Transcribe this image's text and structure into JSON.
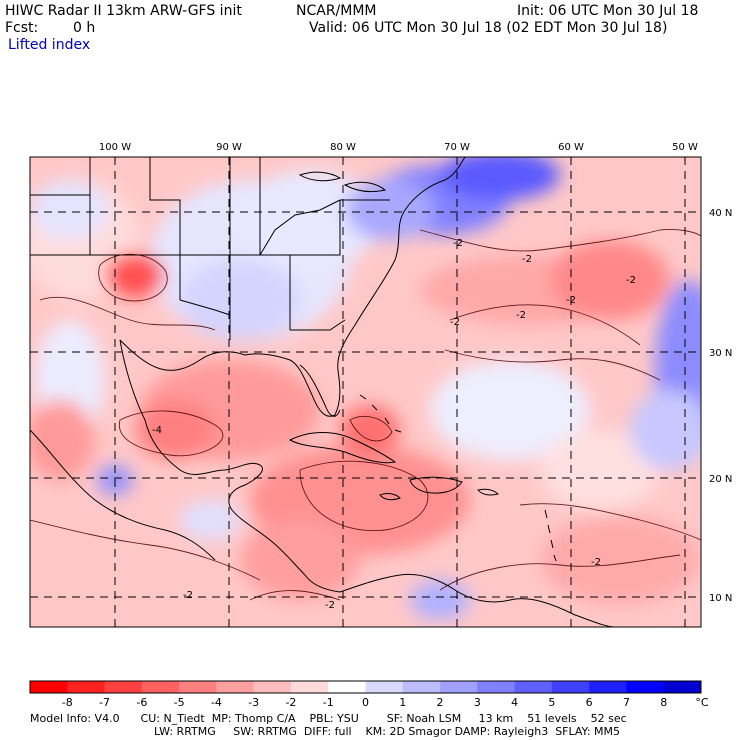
{
  "header": {
    "model": "HIWC Radar II 13km ARW-GFS init",
    "org": "NCAR/MMM",
    "init": "Init: 06 UTC Mon 30 Jul 18",
    "fcst_label": "Fcst:",
    "fcst_value": "0 h",
    "valid": "Valid: 06 UTC Mon 30 Jul 18 (02 EDT Mon 30 Jul 18)",
    "field": "Lifted index"
  },
  "map": {
    "lon_labels": [
      "100 W",
      "90 W",
      "80 W",
      "70 W",
      "60 W",
      "50 W"
    ],
    "lat_labels": [
      "40 N",
      "30 N",
      "20 N",
      "10 N"
    ],
    "contour_labels": [
      "-2",
      "-2",
      "-2",
      "-2",
      "-2",
      "-2",
      "-2",
      "-4",
      "-2",
      "-2"
    ]
  },
  "colorbar": {
    "levels": [
      "-8",
      "-7",
      "-6",
      "-5",
      "-4",
      "-3",
      "-2",
      "-1",
      "0",
      "1",
      "2",
      "3",
      "4",
      "5",
      "6",
      "7",
      "8"
    ],
    "unit": "°C",
    "colors": [
      "#ff0000",
      "#ff2020",
      "#ff4040",
      "#ff6060",
      "#ff8080",
      "#ffa0a0",
      "#ffbcbc",
      "#ffdada",
      "#ffffff",
      "#dadaff",
      "#bcbcff",
      "#a0a0ff",
      "#8080ff",
      "#6060ff",
      "#4040ff",
      "#2020ff",
      "#0000ff",
      "#0000d0"
    ]
  },
  "footer": {
    "line1": "Model Info: V4.0      CU: N_Tiedt  MP: Thomp C/A    PBL: YSU        SF: Noah LSM     13 km    51 levels    52 sec",
    "line2": "LW: RRTMG     SW: RRTMG  DIFF: full    KM: 2D Smagor DAMP: Rayleigh3  SFLAY: MM5"
  }
}
